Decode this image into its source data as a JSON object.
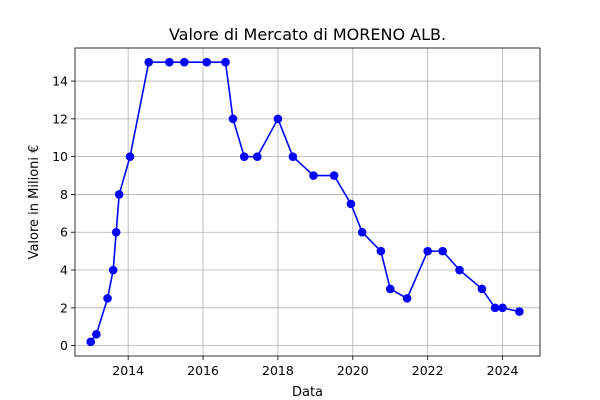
{
  "chart_data": {
    "type": "line",
    "title": "Valore di Mercato di MORENO ALB.",
    "xlabel": "Data",
    "ylabel": "Valore in Milioni €",
    "xlim": [
      2012.58,
      2025.0
    ],
    "ylim": [
      -0.55,
      15.75
    ],
    "grid": true,
    "line_color": "#0000ff",
    "marker_color": "#0000ff",
    "x_ticks": [
      2014,
      2016,
      2018,
      2020,
      2022,
      2024
    ],
    "x_tick_labels": [
      "2014",
      "2016",
      "2018",
      "2020",
      "2022",
      "2024"
    ],
    "y_ticks": [
      0,
      2,
      4,
      6,
      8,
      10,
      12,
      14
    ],
    "y_tick_labels": [
      "0",
      "2",
      "4",
      "6",
      "8",
      "10",
      "12",
      "14"
    ],
    "series": [
      {
        "x": [
          2013.0,
          2013.15,
          2013.45,
          2013.6,
          2013.68,
          2013.76,
          2014.05,
          2014.55,
          2015.1,
          2015.5,
          2016.1,
          2016.6,
          2016.8,
          2017.1,
          2017.45,
          2018.0,
          2018.4,
          2018.95,
          2019.5,
          2019.95,
          2020.25,
          2020.75,
          2021.0,
          2021.45,
          2022.0,
          2022.4,
          2022.85,
          2023.45,
          2023.8,
          2024.0,
          2024.45
        ],
        "y": [
          0.2,
          0.6,
          2.5,
          4.0,
          6.0,
          8.0,
          10.0,
          15.0,
          15.0,
          15.0,
          15.0,
          15.0,
          12.0,
          10.0,
          10.0,
          12.0,
          10.0,
          9.0,
          9.0,
          7.5,
          6.0,
          5.0,
          3.0,
          2.5,
          5.0,
          5.0,
          4.0,
          3.0,
          2.0,
          2.0,
          1.8
        ]
      }
    ]
  }
}
